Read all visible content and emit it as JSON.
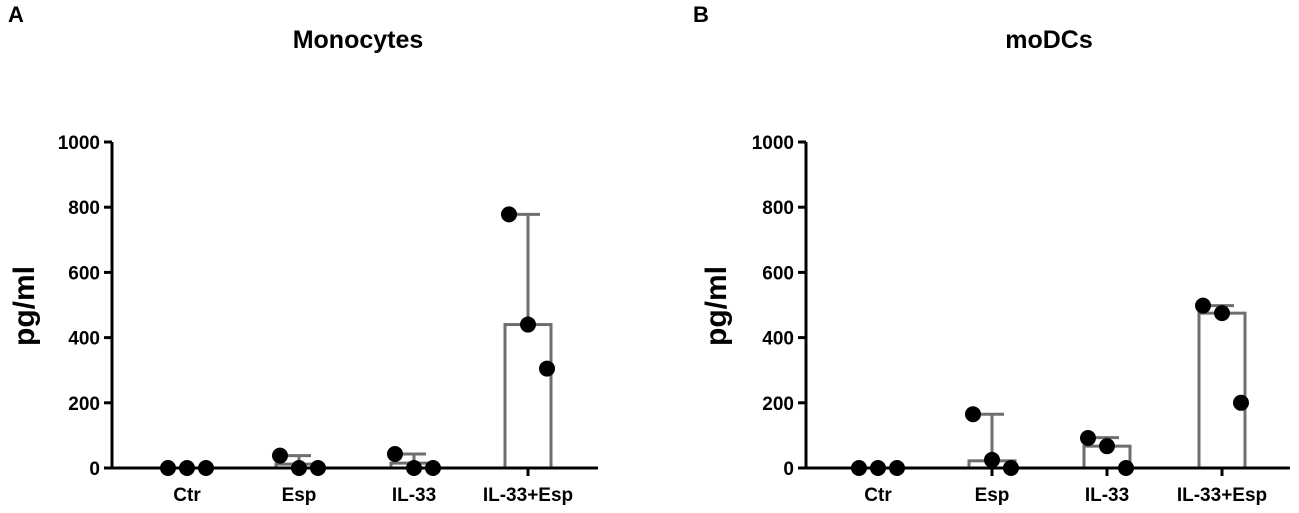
{
  "chart_data": [
    {
      "panel": "A",
      "type": "bar",
      "title": "Monocytes",
      "ylabel": "pg/ml",
      "xlabel": "",
      "ylim": [
        0,
        1000
      ],
      "yticks": [
        0,
        200,
        400,
        600,
        800,
        1000
      ],
      "categories": [
        "Ctr",
        "Esp",
        "IL-33",
        "IL-33+Esp"
      ],
      "values": [
        0,
        12,
        15,
        440
      ],
      "error_upper": [
        0,
        38,
        43,
        778
      ],
      "points": [
        [
          0,
          0,
          0
        ],
        [
          38,
          0,
          0
        ],
        [
          43,
          0,
          0
        ],
        [
          778,
          440,
          305
        ]
      ],
      "grid": false
    },
    {
      "panel": "B",
      "type": "bar",
      "title": "moDCs",
      "ylabel": "pg/ml",
      "xlabel": "",
      "ylim": [
        0,
        1000
      ],
      "yticks": [
        0,
        200,
        400,
        600,
        800,
        1000
      ],
      "categories": [
        "Ctr",
        "Esp",
        "IL-33",
        "IL-33+Esp"
      ],
      "values": [
        0,
        22,
        67,
        475
      ],
      "error_upper": [
        0,
        165,
        93,
        498
      ],
      "points": [
        [
          0,
          0,
          0
        ],
        [
          165,
          25,
          0
        ],
        [
          92,
          67,
          0
        ],
        [
          498,
          475,
          200
        ]
      ],
      "grid": false
    }
  ]
}
